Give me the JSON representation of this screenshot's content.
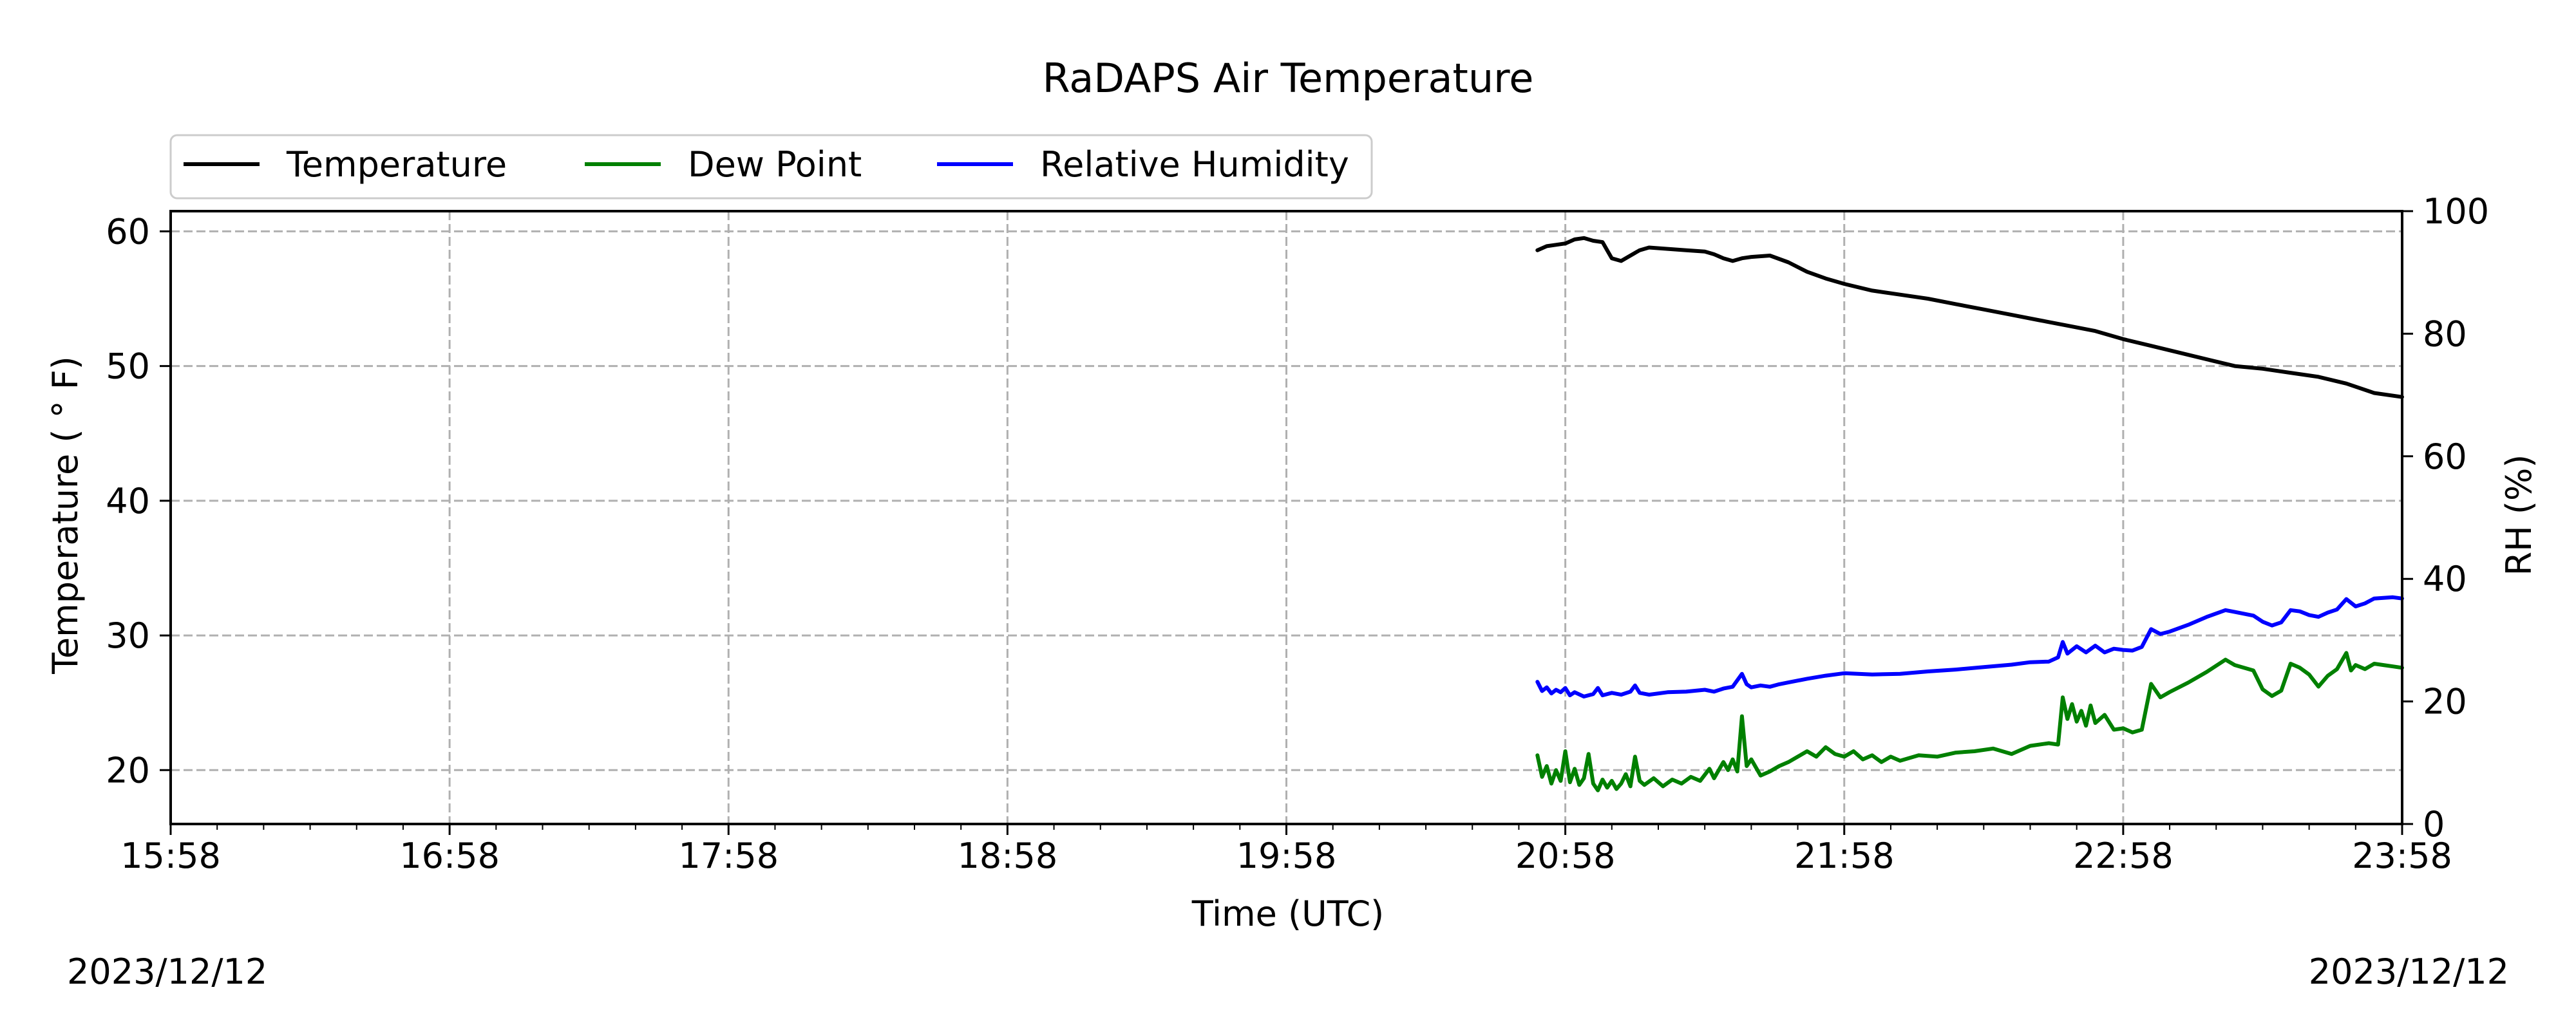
{
  "chart_data": {
    "type": "line",
    "title": "RaDAPS Air Temperature",
    "xlabel": "Time (UTC)",
    "ylabel": "Temperature ( $^\\circ$F)",
    "ylabel_display": "Temperature ( ° F)",
    "y2label": "RH (%)",
    "x_axis_type": "time",
    "xlim": [
      "15:58",
      "23:58"
    ],
    "ylim": [
      16,
      61.5
    ],
    "y2lim": [
      0,
      100
    ],
    "x_ticks": [
      "15:58",
      "16:58",
      "17:58",
      "18:58",
      "19:58",
      "20:58",
      "21:58",
      "22:58",
      "23:58"
    ],
    "y_ticks": [
      20,
      30,
      40,
      50,
      60
    ],
    "y2_ticks": [
      0,
      20,
      40,
      60,
      80,
      100
    ],
    "grid": true,
    "grid_style": "dashed",
    "legend": {
      "placement": "top-left-outside",
      "orientation": "horizontal"
    },
    "date_left": "2023/12/12",
    "date_right": "2023/12/12",
    "series": [
      {
        "name": "Temperature",
        "axis": "left",
        "color": "#000000",
        "points": [
          [
            "20:52",
            58.6
          ],
          [
            "20:54",
            58.9
          ],
          [
            "20:56",
            59.0
          ],
          [
            "20:58",
            59.1
          ],
          [
            "21:00",
            59.4
          ],
          [
            "21:02",
            59.5
          ],
          [
            "21:04",
            59.3
          ],
          [
            "21:06",
            59.2
          ],
          [
            "21:07",
            58.6
          ],
          [
            "21:08",
            58.0
          ],
          [
            "21:10",
            57.8
          ],
          [
            "21:12",
            58.2
          ],
          [
            "21:14",
            58.6
          ],
          [
            "21:16",
            58.8
          ],
          [
            "21:20",
            58.7
          ],
          [
            "21:24",
            58.6
          ],
          [
            "21:28",
            58.5
          ],
          [
            "21:30",
            58.3
          ],
          [
            "21:32",
            58.0
          ],
          [
            "21:34",
            57.8
          ],
          [
            "21:36",
            58.0
          ],
          [
            "21:38",
            58.1
          ],
          [
            "21:42",
            58.2
          ],
          [
            "21:46",
            57.7
          ],
          [
            "21:50",
            57.0
          ],
          [
            "21:54",
            56.5
          ],
          [
            "21:58",
            56.1
          ],
          [
            "22:04",
            55.6
          ],
          [
            "22:10",
            55.3
          ],
          [
            "22:16",
            55.0
          ],
          [
            "22:22",
            54.6
          ],
          [
            "22:28",
            54.2
          ],
          [
            "22:34",
            53.8
          ],
          [
            "22:40",
            53.4
          ],
          [
            "22:46",
            53.0
          ],
          [
            "22:52",
            52.6
          ],
          [
            "22:58",
            52.0
          ],
          [
            "23:04",
            51.5
          ],
          [
            "23:10",
            51.0
          ],
          [
            "23:16",
            50.5
          ],
          [
            "23:22",
            50.0
          ],
          [
            "23:28",
            49.8
          ],
          [
            "23:34",
            49.5
          ],
          [
            "23:40",
            49.2
          ],
          [
            "23:46",
            48.7
          ],
          [
            "23:52",
            48.0
          ],
          [
            "23:58",
            47.7
          ]
        ]
      },
      {
        "name": "Dew Point",
        "axis": "left",
        "color": "#008000",
        "points": [
          [
            "20:52",
            21.1
          ],
          [
            "20:53",
            19.5
          ],
          [
            "20:54",
            20.3
          ],
          [
            "20:55",
            19.0
          ],
          [
            "20:56",
            20.0
          ],
          [
            "20:57",
            19.2
          ],
          [
            "20:58",
            21.4
          ],
          [
            "20:59",
            19.1
          ],
          [
            "21:00",
            20.1
          ],
          [
            "21:01",
            18.9
          ],
          [
            "21:02",
            19.4
          ],
          [
            "21:03",
            21.2
          ],
          [
            "21:04",
            19.0
          ],
          [
            "21:05",
            18.5
          ],
          [
            "21:06",
            19.3
          ],
          [
            "21:07",
            18.7
          ],
          [
            "21:08",
            19.2
          ],
          [
            "21:09",
            18.6
          ],
          [
            "21:10",
            19.0
          ],
          [
            "21:11",
            19.7
          ],
          [
            "21:12",
            18.8
          ],
          [
            "21:13",
            21.0
          ],
          [
            "21:14",
            19.2
          ],
          [
            "21:15",
            18.9
          ],
          [
            "21:17",
            19.4
          ],
          [
            "21:19",
            18.8
          ],
          [
            "21:21",
            19.3
          ],
          [
            "21:23",
            19.0
          ],
          [
            "21:25",
            19.5
          ],
          [
            "21:27",
            19.2
          ],
          [
            "21:29",
            20.1
          ],
          [
            "21:30",
            19.4
          ],
          [
            "21:32",
            20.6
          ],
          [
            "21:33",
            20.0
          ],
          [
            "21:34",
            20.8
          ],
          [
            "21:35",
            19.9
          ],
          [
            "21:36",
            24.0
          ],
          [
            "21:37",
            20.3
          ],
          [
            "21:38",
            20.8
          ],
          [
            "21:40",
            19.6
          ],
          [
            "21:42",
            19.9
          ],
          [
            "21:44",
            20.3
          ],
          [
            "21:46",
            20.6
          ],
          [
            "21:48",
            21.0
          ],
          [
            "21:50",
            21.4
          ],
          [
            "21:52",
            21.0
          ],
          [
            "21:54",
            21.7
          ],
          [
            "21:56",
            21.2
          ],
          [
            "21:58",
            21.0
          ],
          [
            "22:00",
            21.4
          ],
          [
            "22:02",
            20.8
          ],
          [
            "22:04",
            21.1
          ],
          [
            "22:06",
            20.6
          ],
          [
            "22:08",
            21.0
          ],
          [
            "22:10",
            20.7
          ],
          [
            "22:14",
            21.1
          ],
          [
            "22:18",
            21.0
          ],
          [
            "22:22",
            21.3
          ],
          [
            "22:26",
            21.4
          ],
          [
            "22:30",
            21.6
          ],
          [
            "22:34",
            21.2
          ],
          [
            "22:38",
            21.8
          ],
          [
            "22:42",
            22.0
          ],
          [
            "22:44",
            21.9
          ],
          [
            "22:45",
            25.4
          ],
          [
            "22:46",
            23.8
          ],
          [
            "22:47",
            24.9
          ],
          [
            "22:48",
            23.6
          ],
          [
            "22:49",
            24.4
          ],
          [
            "22:50",
            23.3
          ],
          [
            "22:51",
            24.8
          ],
          [
            "22:52",
            23.5
          ],
          [
            "22:54",
            24.1
          ],
          [
            "22:56",
            23.0
          ],
          [
            "22:58",
            23.1
          ],
          [
            "23:00",
            22.8
          ],
          [
            "23:02",
            23.0
          ],
          [
            "23:04",
            26.4
          ],
          [
            "23:06",
            25.4
          ],
          [
            "23:08",
            25.8
          ],
          [
            "23:12",
            26.5
          ],
          [
            "23:16",
            27.3
          ],
          [
            "23:20",
            28.2
          ],
          [
            "23:22",
            27.8
          ],
          [
            "23:26",
            27.4
          ],
          [
            "23:28",
            26.0
          ],
          [
            "23:30",
            25.5
          ],
          [
            "23:32",
            25.9
          ],
          [
            "23:34",
            27.9
          ],
          [
            "23:36",
            27.6
          ],
          [
            "23:38",
            27.1
          ],
          [
            "23:40",
            26.2
          ],
          [
            "23:42",
            27.0
          ],
          [
            "23:44",
            27.5
          ],
          [
            "23:46",
            28.7
          ],
          [
            "23:47",
            27.4
          ],
          [
            "23:48",
            27.8
          ],
          [
            "23:50",
            27.5
          ],
          [
            "23:52",
            27.9
          ],
          [
            "23:54",
            27.8
          ],
          [
            "23:56",
            27.7
          ],
          [
            "23:58",
            27.6
          ]
        ]
      },
      {
        "name": "Relative Humidity",
        "axis": "right",
        "color": "#0000ff",
        "points": [
          [
            "20:52",
            23.2
          ],
          [
            "20:53",
            21.7
          ],
          [
            "20:54",
            22.3
          ],
          [
            "20:55",
            21.3
          ],
          [
            "20:56",
            21.9
          ],
          [
            "20:57",
            21.5
          ],
          [
            "20:58",
            22.2
          ],
          [
            "20:59",
            21.0
          ],
          [
            "21:00",
            21.5
          ],
          [
            "21:02",
            20.8
          ],
          [
            "21:04",
            21.2
          ],
          [
            "21:05",
            22.2
          ],
          [
            "21:06",
            21.0
          ],
          [
            "21:08",
            21.4
          ],
          [
            "21:10",
            21.1
          ],
          [
            "21:12",
            21.6
          ],
          [
            "21:13",
            22.6
          ],
          [
            "21:14",
            21.4
          ],
          [
            "21:16",
            21.1
          ],
          [
            "21:20",
            21.5
          ],
          [
            "21:24",
            21.6
          ],
          [
            "21:28",
            21.9
          ],
          [
            "21:30",
            21.6
          ],
          [
            "21:32",
            22.1
          ],
          [
            "21:34",
            22.4
          ],
          [
            "21:36",
            24.5
          ],
          [
            "21:37",
            22.8
          ],
          [
            "21:38",
            22.3
          ],
          [
            "21:40",
            22.6
          ],
          [
            "21:42",
            22.4
          ],
          [
            "21:44",
            22.8
          ],
          [
            "21:46",
            23.1
          ],
          [
            "21:50",
            23.7
          ],
          [
            "21:54",
            24.2
          ],
          [
            "21:58",
            24.6
          ],
          [
            "22:04",
            24.4
          ],
          [
            "22:10",
            24.5
          ],
          [
            "22:16",
            24.9
          ],
          [
            "22:22",
            25.2
          ],
          [
            "22:28",
            25.6
          ],
          [
            "22:34",
            26.0
          ],
          [
            "22:38",
            26.4
          ],
          [
            "22:42",
            26.5
          ],
          [
            "22:44",
            27.2
          ],
          [
            "22:45",
            29.7
          ],
          [
            "22:46",
            27.8
          ],
          [
            "22:48",
            29.0
          ],
          [
            "22:50",
            28.0
          ],
          [
            "22:52",
            29.1
          ],
          [
            "22:54",
            28.0
          ],
          [
            "22:56",
            28.6
          ],
          [
            "22:58",
            28.4
          ],
          [
            "23:00",
            28.3
          ],
          [
            "23:02",
            28.9
          ],
          [
            "23:04",
            31.8
          ],
          [
            "23:06",
            31.0
          ],
          [
            "23:08",
            31.4
          ],
          [
            "23:12",
            32.5
          ],
          [
            "23:16",
            33.8
          ],
          [
            "23:20",
            34.9
          ],
          [
            "23:22",
            34.6
          ],
          [
            "23:26",
            34.0
          ],
          [
            "23:28",
            33.0
          ],
          [
            "23:30",
            32.4
          ],
          [
            "23:32",
            32.9
          ],
          [
            "23:34",
            34.9
          ],
          [
            "23:36",
            34.7
          ],
          [
            "23:38",
            34.1
          ],
          [
            "23:40",
            33.8
          ],
          [
            "23:42",
            34.5
          ],
          [
            "23:44",
            35.0
          ],
          [
            "23:46",
            36.7
          ],
          [
            "23:48",
            35.5
          ],
          [
            "23:50",
            36.0
          ],
          [
            "23:52",
            36.8
          ],
          [
            "23:54",
            36.9
          ],
          [
            "23:56",
            37.0
          ],
          [
            "23:58",
            36.8
          ]
        ]
      }
    ]
  }
}
